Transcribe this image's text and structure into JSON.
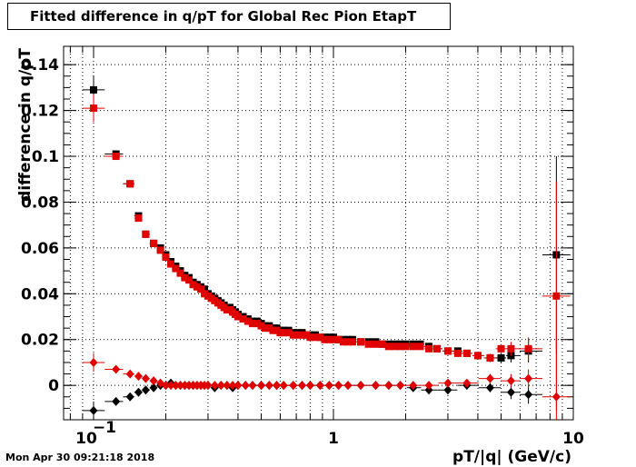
{
  "chart_data": {
    "type": "scatter",
    "title": "Fitted difference in q/pT for Global Rec Pion EtapT",
    "xlabel": "pT/|q| (GeV/c)",
    "ylabel": "difference in q/pT",
    "x_scale": "log",
    "xlim": [
      0.075,
      10
    ],
    "ylim": [
      -0.015,
      0.148
    ],
    "grid": true,
    "x_ticks": [
      {
        "value": 0.1,
        "base": "10",
        "exp": "−1"
      },
      {
        "value": 1,
        "base": "1",
        "exp": ""
      },
      {
        "value": 10,
        "base": "10",
        "exp": ""
      }
    ],
    "y_ticks": [
      {
        "value": 0,
        "label": "0"
      },
      {
        "value": 0.02,
        "label": "0.02"
      },
      {
        "value": 0.04,
        "label": "0.04"
      },
      {
        "value": 0.06,
        "label": "0.06"
      },
      {
        "value": 0.08,
        "label": "0.08"
      },
      {
        "value": 0.1,
        "label": "0.1"
      },
      {
        "value": 0.12,
        "label": "0.12"
      },
      {
        "value": 0.14,
        "label": "0.14"
      }
    ],
    "series": [
      {
        "color": "#000000",
        "marker": "square",
        "x": [
          0.1,
          0.124,
          0.142,
          0.154,
          0.165,
          0.178,
          0.19,
          0.2,
          0.21,
          0.22,
          0.23,
          0.24,
          0.25,
          0.26,
          0.27,
          0.28,
          0.29,
          0.3,
          0.31,
          0.32,
          0.33,
          0.34,
          0.35,
          0.36,
          0.37,
          0.38,
          0.39,
          0.4,
          0.42,
          0.44,
          0.46,
          0.48,
          0.5,
          0.52,
          0.54,
          0.56,
          0.58,
          0.6,
          0.62,
          0.65,
          0.68,
          0.71,
          0.74,
          0.77,
          0.8,
          0.84,
          0.88,
          0.92,
          0.96,
          1.0,
          1.05,
          1.1,
          1.15,
          1.2,
          1.3,
          1.4,
          1.5,
          1.6,
          1.7,
          1.8,
          1.9,
          2.0,
          2.15,
          2.3,
          2.5,
          2.7,
          3.0,
          3.3,
          3.6,
          4.0,
          4.5,
          5.0,
          5.5,
          6.5,
          8.5
        ],
        "y": [
          0.129,
          0.101,
          0.088,
          0.074,
          0.066,
          0.062,
          0.06,
          0.057,
          0.054,
          0.052,
          0.05,
          0.048,
          0.047,
          0.045,
          0.044,
          0.043,
          0.042,
          0.04,
          0.039,
          0.038,
          0.037,
          0.036,
          0.035,
          0.034,
          0.034,
          0.033,
          0.032,
          0.031,
          0.03,
          0.029,
          0.028,
          0.028,
          0.027,
          0.026,
          0.026,
          0.025,
          0.025,
          0.024,
          0.024,
          0.024,
          0.023,
          0.023,
          0.023,
          0.022,
          0.022,
          0.022,
          0.021,
          0.021,
          0.021,
          0.021,
          0.02,
          0.02,
          0.02,
          0.02,
          0.019,
          0.019,
          0.019,
          0.018,
          0.018,
          0.018,
          0.018,
          0.018,
          0.018,
          0.018,
          0.017,
          0.016,
          0.015,
          0.015,
          0.014,
          0.013,
          0.012,
          0.012,
          0.013,
          0.015,
          0.057
        ],
        "yerr": [
          0.006,
          0.0015,
          0.001,
          0.001,
          0.0008,
          0.0005,
          0.0005,
          0.0005,
          0.0005,
          0.0005,
          0.0005,
          0.0005,
          0.0005,
          0.0005,
          0.0005,
          0.0005,
          0.0005,
          0.0005,
          0.0005,
          0.0005,
          0.0005,
          0.0005,
          0.0005,
          0.0005,
          0.0005,
          0.0005,
          0.0005,
          0.0005,
          0.0005,
          0.0005,
          0.0005,
          0.0005,
          0.0005,
          0.0005,
          0.0005,
          0.0005,
          0.0005,
          0.0005,
          0.0005,
          0.0005,
          0.0005,
          0.0005,
          0.0005,
          0.0005,
          0.0005,
          0.0005,
          0.0005,
          0.0005,
          0.0005,
          0.0005,
          0.0005,
          0.0005,
          0.0005,
          0.0005,
          0.0005,
          0.0005,
          0.0005,
          0.0005,
          0.0005,
          0.0005,
          0.0005,
          0.0005,
          0.0005,
          0.0005,
          0.0008,
          0.0008,
          0.001,
          0.001,
          0.0012,
          0.0015,
          0.0018,
          0.002,
          0.003,
          0.005,
          0.043
        ]
      },
      {
        "color": "#e00000",
        "marker": "square",
        "x": [
          0.1,
          0.124,
          0.142,
          0.154,
          0.165,
          0.178,
          0.19,
          0.2,
          0.21,
          0.22,
          0.23,
          0.24,
          0.25,
          0.26,
          0.27,
          0.28,
          0.29,
          0.3,
          0.31,
          0.32,
          0.33,
          0.34,
          0.35,
          0.36,
          0.37,
          0.38,
          0.39,
          0.4,
          0.42,
          0.44,
          0.46,
          0.48,
          0.5,
          0.52,
          0.54,
          0.56,
          0.58,
          0.6,
          0.62,
          0.65,
          0.68,
          0.71,
          0.74,
          0.77,
          0.8,
          0.84,
          0.88,
          0.92,
          0.96,
          1.0,
          1.05,
          1.1,
          1.15,
          1.2,
          1.3,
          1.4,
          1.5,
          1.6,
          1.7,
          1.8,
          1.9,
          2.0,
          2.15,
          2.3,
          2.5,
          2.7,
          3.0,
          3.3,
          3.6,
          4.0,
          4.5,
          5.0,
          5.5,
          6.5,
          8.5
        ],
        "y": [
          0.121,
          0.1,
          0.088,
          0.073,
          0.066,
          0.062,
          0.059,
          0.056,
          0.053,
          0.051,
          0.049,
          0.047,
          0.046,
          0.044,
          0.043,
          0.042,
          0.04,
          0.039,
          0.038,
          0.037,
          0.036,
          0.035,
          0.034,
          0.033,
          0.033,
          0.032,
          0.031,
          0.03,
          0.029,
          0.028,
          0.027,
          0.027,
          0.026,
          0.025,
          0.025,
          0.024,
          0.024,
          0.023,
          0.023,
          0.023,
          0.022,
          0.022,
          0.022,
          0.022,
          0.021,
          0.021,
          0.021,
          0.02,
          0.02,
          0.02,
          0.02,
          0.019,
          0.019,
          0.019,
          0.019,
          0.018,
          0.018,
          0.018,
          0.017,
          0.017,
          0.017,
          0.017,
          0.017,
          0.017,
          0.016,
          0.016,
          0.015,
          0.014,
          0.014,
          0.013,
          0.012,
          0.016,
          0.016,
          0.016,
          0.039
        ],
        "yerr": [
          0.006,
          0.0015,
          0.001,
          0.001,
          0.0008,
          0.0005,
          0.0005,
          0.0005,
          0.0005,
          0.0005,
          0.0005,
          0.0005,
          0.0005,
          0.0005,
          0.0005,
          0.0005,
          0.0005,
          0.0005,
          0.0005,
          0.0005,
          0.0005,
          0.0005,
          0.0005,
          0.0005,
          0.0005,
          0.0005,
          0.0005,
          0.0005,
          0.0005,
          0.0005,
          0.0005,
          0.0005,
          0.0005,
          0.0005,
          0.0005,
          0.0005,
          0.0005,
          0.0005,
          0.0005,
          0.0005,
          0.0005,
          0.0005,
          0.0005,
          0.0005,
          0.0005,
          0.0005,
          0.0005,
          0.0005,
          0.0005,
          0.0005,
          0.0005,
          0.0005,
          0.0005,
          0.0005,
          0.0005,
          0.0005,
          0.0005,
          0.0005,
          0.0005,
          0.0005,
          0.0005,
          0.0005,
          0.0005,
          0.0005,
          0.0008,
          0.0008,
          0.001,
          0.001,
          0.0012,
          0.0015,
          0.0018,
          0.002,
          0.003,
          0.005,
          0.05
        ]
      },
      {
        "color": "#000000",
        "marker": "diamond",
        "x": [
          0.1,
          0.124,
          0.142,
          0.154,
          0.165,
          0.178,
          0.19,
          0.2,
          0.21,
          0.22,
          0.23,
          0.24,
          0.25,
          0.26,
          0.27,
          0.28,
          0.29,
          0.3,
          0.32,
          0.34,
          0.36,
          0.38,
          0.4,
          0.43,
          0.46,
          0.5,
          0.54,
          0.58,
          0.62,
          0.68,
          0.74,
          0.8,
          0.88,
          0.96,
          1.05,
          1.15,
          1.3,
          1.5,
          1.7,
          1.9,
          2.15,
          2.5,
          3.0,
          3.6,
          4.5,
          5.5,
          6.5,
          8.5
        ],
        "y": [
          -0.011,
          -0.007,
          -0.005,
          -0.003,
          -0.002,
          -0.001,
          0.0,
          0.0,
          0.001,
          0.0,
          0.0,
          0.0,
          0.0,
          0.0,
          0.0,
          0.0,
          0.0,
          0.0,
          -0.001,
          0.0,
          0.0,
          -0.001,
          0.0,
          0.0,
          0.0,
          0.0,
          0.0,
          0.0,
          0.0,
          0.0,
          0.0,
          0.0,
          0.0,
          0.0,
          0.0,
          0.0,
          0.0,
          0.0,
          0.0,
          0.0,
          -0.001,
          -0.002,
          -0.002,
          0.0,
          -0.001,
          -0.003,
          -0.004,
          null
        ],
        "yerr": [
          0.004,
          0.0015,
          0.001,
          0.001,
          0.0008,
          0.0005,
          0.0005,
          0.0005,
          0.0005,
          0.0005,
          0.0005,
          0.0005,
          0.0005,
          0.0005,
          0.0005,
          0.0005,
          0.0005,
          0.0005,
          0.0005,
          0.0005,
          0.0005,
          0.0005,
          0.0005,
          0.0005,
          0.0005,
          0.0005,
          0.0005,
          0.0005,
          0.0005,
          0.0005,
          0.0005,
          0.0005,
          0.0005,
          0.0005,
          0.0005,
          0.0005,
          0.0005,
          0.0005,
          0.0005,
          0.0005,
          0.0008,
          0.001,
          0.0012,
          0.0015,
          0.002,
          0.003,
          0.004,
          0
        ]
      },
      {
        "color": "#e00000",
        "marker": "diamond",
        "x": [
          0.1,
          0.124,
          0.142,
          0.154,
          0.165,
          0.178,
          0.19,
          0.2,
          0.21,
          0.22,
          0.23,
          0.24,
          0.25,
          0.26,
          0.27,
          0.28,
          0.29,
          0.3,
          0.32,
          0.34,
          0.36,
          0.38,
          0.4,
          0.43,
          0.46,
          0.5,
          0.54,
          0.58,
          0.62,
          0.68,
          0.74,
          0.8,
          0.88,
          0.96,
          1.05,
          1.15,
          1.3,
          1.5,
          1.7,
          1.9,
          2.15,
          2.5,
          3.0,
          3.6,
          4.5,
          5.5,
          6.5,
          8.5
        ],
        "y": [
          0.01,
          0.007,
          0.005,
          0.004,
          0.003,
          0.002,
          0.001,
          0.0,
          0.0,
          0.0,
          0.0,
          0.0,
          0.0,
          0.0,
          0.0,
          0.0,
          0.0,
          0.0,
          0.0,
          0.0,
          0.0,
          0.0,
          0.0,
          0.0,
          0.0,
          0.0,
          0.0,
          0.0,
          0.0,
          0.0,
          0.0,
          0.0,
          0.0,
          0.0,
          0.0,
          0.0,
          0.0,
          0.0,
          0.0,
          0.0,
          0.0,
          0.0,
          0.001,
          0.001,
          0.003,
          0.002,
          0.003,
          -0.005
        ],
        "yerr": [
          0.004,
          0.0015,
          0.001,
          0.001,
          0.0008,
          0.0005,
          0.0005,
          0.0005,
          0.0005,
          0.0005,
          0.0005,
          0.0005,
          0.0005,
          0.0005,
          0.0005,
          0.0005,
          0.0005,
          0.0005,
          0.0005,
          0.0005,
          0.0005,
          0.0005,
          0.0005,
          0.0005,
          0.0005,
          0.0005,
          0.0005,
          0.0005,
          0.0005,
          0.0005,
          0.0005,
          0.0005,
          0.0005,
          0.0005,
          0.0005,
          0.0005,
          0.0005,
          0.0005,
          0.0005,
          0.0005,
          0.0008,
          0.001,
          0.0012,
          0.0015,
          0.002,
          0.003,
          0.004,
          0.025
        ]
      }
    ]
  },
  "footer": {
    "timestamp": "Mon Apr 30 09:21:18 2018"
  }
}
